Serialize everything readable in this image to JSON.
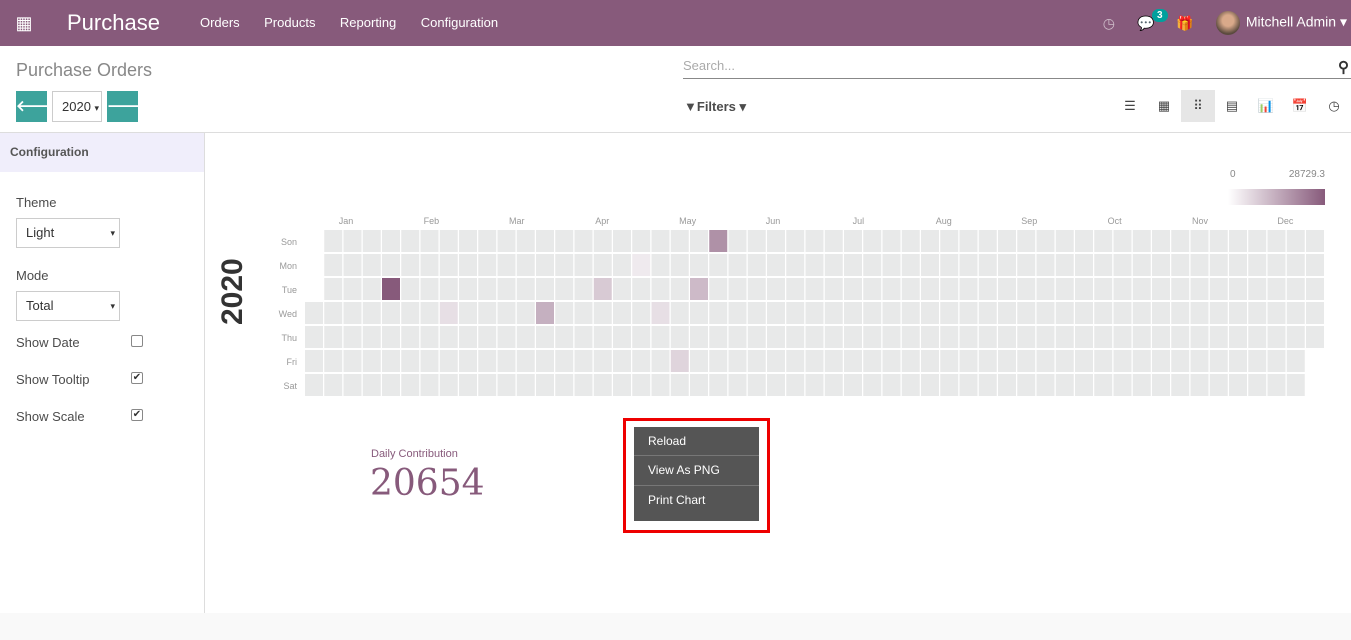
{
  "topbar": {
    "app_title": "Purchase",
    "menu": [
      "Orders",
      "Products",
      "Reporting",
      "Configuration"
    ],
    "messages_count": "3",
    "user": "Mitchell Admin",
    "brand_color": "#875a7b"
  },
  "control": {
    "title": "Purchase Orders",
    "year": "2020",
    "search_placeholder": "Search...",
    "filters_label": "Filters",
    "views": [
      "list",
      "kanban",
      "heatmap",
      "pivot",
      "graph",
      "calendar",
      "activity"
    ],
    "active_view": "heatmap"
  },
  "sidebar": {
    "header": "Configuration",
    "theme_label": "Theme",
    "theme_value": "Light",
    "mode_label": "Mode",
    "mode_value": "Total",
    "show_date_label": "Show Date",
    "show_date": false,
    "show_tooltip_label": "Show Tooltip",
    "show_tooltip": true,
    "show_scale_label": "Show Scale",
    "show_scale": true
  },
  "contribution": {
    "label": "Daily Contribution",
    "value": "20654"
  },
  "context_menu": {
    "items": [
      "Reload",
      "View As PNG",
      "Print Chart"
    ]
  },
  "chart_data": {
    "type": "heatmap",
    "year_label": "2020",
    "months": [
      "Jan",
      "Feb",
      "Mar",
      "Apr",
      "May",
      "Jun",
      "Jul",
      "Aug",
      "Sep",
      "Oct",
      "Nov",
      "Dec"
    ],
    "days": [
      "Son",
      "Mon",
      "Tue",
      "Wed",
      "Thu",
      "Fri",
      "Sat"
    ],
    "scale": {
      "min": "0",
      "max": "28729.3",
      "low_color": "#ffffff",
      "high_color": "#875a7b",
      "empty_color": "#e8e9e9"
    },
    "values": [
      {
        "date": "2020-01-28",
        "value": 28729.3
      },
      {
        "date": "2020-05-24",
        "value": 18000
      },
      {
        "date": "2020-03-25",
        "value": 12000
      },
      {
        "date": "2020-05-19",
        "value": 10000
      },
      {
        "date": "2020-04-14",
        "value": 7000
      },
      {
        "date": "2020-05-15",
        "value": 5000
      },
      {
        "date": "2020-02-19",
        "value": 3000
      },
      {
        "date": "2020-05-06",
        "value": 3000
      },
      {
        "date": "2020-04-27",
        "value": 800
      }
    ]
  }
}
